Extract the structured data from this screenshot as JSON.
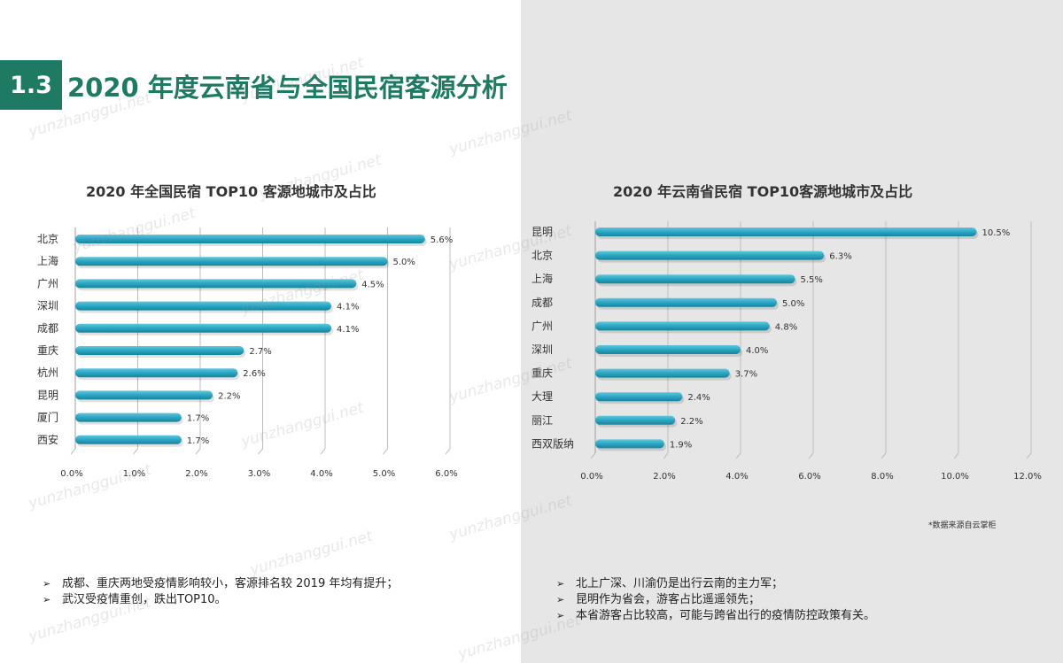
{
  "header": {
    "section_number": "1.3",
    "title": "2020 年度云南省与全国民宿客源分析"
  },
  "left_chart": {
    "title": "2020 年全国民宿 TOP10 客源地城市及占比"
  },
  "right_chart": {
    "title": "2020 年云南省民宿 TOP10客源地城市及占比"
  },
  "chart_data": [
    {
      "type": "bar",
      "orientation": "horizontal",
      "title": "2020 年全国民宿 TOP10 客源地城市及占比",
      "categories": [
        "北京",
        "上海",
        "广州",
        "深圳",
        "成都",
        "重庆",
        "杭州",
        "昆明",
        "厦门",
        "西安"
      ],
      "values": [
        5.6,
        5.0,
        4.5,
        4.1,
        4.1,
        2.7,
        2.6,
        2.2,
        1.7,
        1.7
      ],
      "value_labels": [
        "5.6%",
        "5.0%",
        "4.5%",
        "4.1%",
        "4.1%",
        "2.7%",
        "2.6%",
        "2.2%",
        "1.7%",
        "1.7%"
      ],
      "xlim": [
        0,
        6
      ],
      "xticks": [
        0,
        1,
        2,
        3,
        4,
        5,
        6
      ],
      "xtick_labels": [
        "0.0%",
        "1.0%",
        "2.0%",
        "3.0%",
        "4.0%",
        "5.0%",
        "6.0%"
      ],
      "grid": true,
      "bar_color": "#2aa6c2"
    },
    {
      "type": "bar",
      "orientation": "horizontal",
      "title": "2020 年云南省民宿 TOP10客源地城市及占比",
      "categories": [
        "昆明",
        "北京",
        "上海",
        "成都",
        "广州",
        "深圳",
        "重庆",
        "大理",
        "丽江",
        "西双版纳"
      ],
      "values": [
        10.5,
        6.3,
        5.5,
        5.0,
        4.8,
        4.0,
        3.7,
        2.4,
        2.2,
        1.9
      ],
      "value_labels": [
        "10.5%",
        "6.3%",
        "5.5%",
        "5.0%",
        "4.8%",
        "4.0%",
        "3.7%",
        "2.4%",
        "2.2%",
        "1.9%"
      ],
      "xlim": [
        0,
        12
      ],
      "xticks": [
        0,
        2,
        4,
        6,
        8,
        10,
        12
      ],
      "xtick_labels": [
        "0.0%",
        "2.0%",
        "4.0%",
        "6.0%",
        "8.0%",
        "10.0%",
        "12.0%"
      ],
      "grid": true,
      "bar_color": "#2aa6c2"
    }
  ],
  "source_note": "*数据来源自云掌柜",
  "left_bullets": [
    "成都、重庆两地受疫情影响较小，客源排名较 2019 年均有提升；",
    "武汉受疫情重创，跌出TOP10。"
  ],
  "right_bullets": [
    "北上广深、川渝仍是出行云南的主力军；",
    "昆明作为省会，游客占比遥遥领先；",
    "本省游客占比较高，可能与跨省出行的疫情防控政策有关。"
  ],
  "bullet_marker": "➢",
  "watermark": "yunzhanggui.net",
  "colors": {
    "accent": "#1f7a63",
    "bar": "#2aa6c2",
    "right_panel_bg": "#e6e6e6"
  }
}
